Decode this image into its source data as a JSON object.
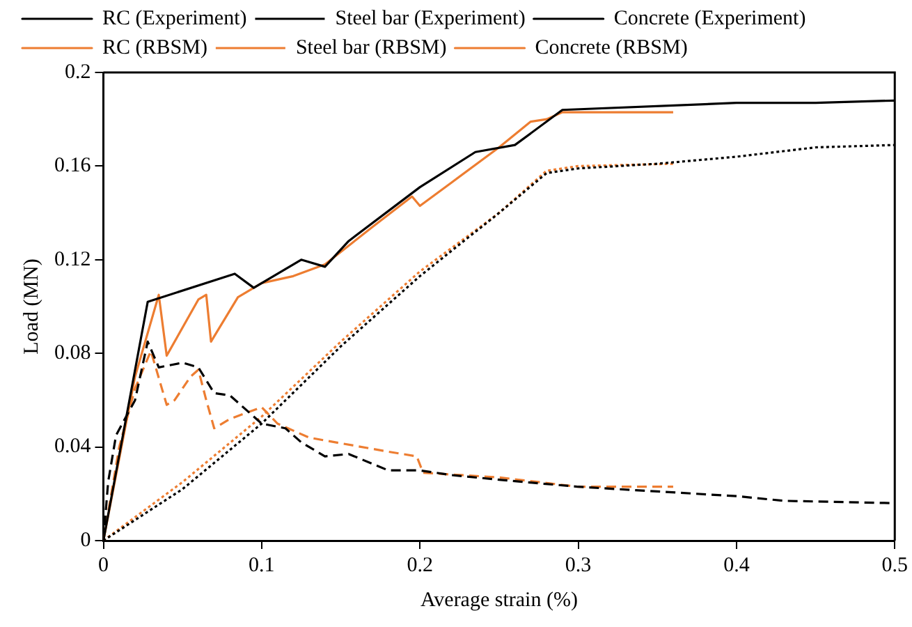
{
  "chart_data": {
    "type": "line",
    "xlabel": "Average strain (%)",
    "ylabel": "Load (MN)",
    "xlim": [
      0,
      0.5
    ],
    "ylim": [
      0,
      0.2
    ],
    "xticks": [
      0,
      0.1,
      0.2,
      0.3,
      0.4,
      0.5
    ],
    "yticks": [
      0,
      0.04,
      0.08,
      0.12,
      0.16,
      0.2
    ],
    "grid": false,
    "legend": "top",
    "marker": "none",
    "series": [
      {
        "name": "RC (Experiment)",
        "color": "#000000",
        "line_style": "solid",
        "x": [
          0,
          0.028,
          0.083,
          0.095,
          0.125,
          0.14,
          0.155,
          0.2,
          0.235,
          0.26,
          0.29,
          0.4,
          0.45,
          0.5
        ],
        "values": [
          0,
          0.102,
          0.114,
          0.108,
          0.12,
          0.117,
          0.128,
          0.151,
          0.166,
          0.169,
          0.184,
          0.187,
          0.187,
          0.188
        ]
      },
      {
        "name": "Steel bar (Experiment)",
        "color": "#000000",
        "line_style": "dotted",
        "x": [
          0,
          0.05,
          0.1,
          0.15,
          0.2,
          0.25,
          0.28,
          0.3,
          0.35,
          0.4,
          0.45,
          0.5
        ],
        "values": [
          0,
          0.022,
          0.05,
          0.083,
          0.113,
          0.14,
          0.157,
          0.159,
          0.161,
          0.164,
          0.168,
          0.169
        ]
      },
      {
        "name": "Concrete (Experiment)",
        "color": "#000000",
        "line_style": "dashed",
        "x": [
          0,
          0.003,
          0.008,
          0.02,
          0.028,
          0.035,
          0.05,
          0.06,
          0.07,
          0.08,
          0.1,
          0.115,
          0.125,
          0.14,
          0.155,
          0.18,
          0.2,
          0.22,
          0.25,
          0.3,
          0.35,
          0.4,
          0.43,
          0.5
        ],
        "values": [
          0,
          0.025,
          0.045,
          0.06,
          0.085,
          0.074,
          0.076,
          0.074,
          0.063,
          0.062,
          0.05,
          0.048,
          0.042,
          0.036,
          0.037,
          0.03,
          0.03,
          0.028,
          0.026,
          0.023,
          0.021,
          0.019,
          0.017,
          0.016
        ]
      },
      {
        "name": "RC (RBSM)",
        "color": "#ed7d31",
        "line_style": "solid",
        "x": [
          0,
          0.02,
          0.035,
          0.04,
          0.06,
          0.065,
          0.068,
          0.085,
          0.1,
          0.12,
          0.14,
          0.17,
          0.195,
          0.2,
          0.22,
          0.25,
          0.27,
          0.28,
          0.29,
          0.36
        ],
        "values": [
          0,
          0.07,
          0.105,
          0.079,
          0.103,
          0.105,
          0.085,
          0.104,
          0.11,
          0.113,
          0.118,
          0.134,
          0.147,
          0.143,
          0.153,
          0.168,
          0.179,
          0.18,
          0.183,
          0.183
        ]
      },
      {
        "name": "Steel bar (RBSM)",
        "color": "#ed7d31",
        "line_style": "dotted",
        "x": [
          0,
          0.05,
          0.1,
          0.15,
          0.2,
          0.25,
          0.28,
          0.3,
          0.36
        ],
        "values": [
          0,
          0.025,
          0.053,
          0.085,
          0.115,
          0.14,
          0.158,
          0.16,
          0.161
        ]
      },
      {
        "name": "Concrete (RBSM)",
        "color": "#ed7d31",
        "line_style": "dashed",
        "x": [
          0,
          0.01,
          0.02,
          0.03,
          0.04,
          0.045,
          0.055,
          0.06,
          0.065,
          0.07,
          0.08,
          0.1,
          0.11,
          0.13,
          0.18,
          0.198,
          0.202,
          0.25,
          0.3,
          0.36
        ],
        "values": [
          0,
          0.04,
          0.065,
          0.081,
          0.058,
          0.06,
          0.07,
          0.073,
          0.06,
          0.048,
          0.052,
          0.057,
          0.05,
          0.044,
          0.038,
          0.036,
          0.029,
          0.027,
          0.023,
          0.023
        ]
      }
    ]
  }
}
